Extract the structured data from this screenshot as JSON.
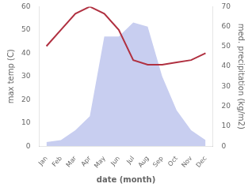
{
  "chart_data": {
    "type": "line",
    "xlabel": "date (month)",
    "ylabel": "max temp (C)",
    "y2label": "med. precipitation (kg/m2)",
    "categories": [
      "Jan",
      "Feb",
      "Mar",
      "Apr",
      "May",
      "Jun",
      "Jul",
      "Aug",
      "Sep",
      "Oct",
      "Nov",
      "Dec"
    ],
    "series": [
      {
        "type": "area",
        "color": "#c8cef0",
        "axis": "y2",
        "values": [
          2,
          3,
          8,
          15,
          55,
          55,
          62,
          60,
          35,
          18,
          8,
          3
        ]
      },
      {
        "type": "line",
        "color": "#b03040",
        "values": [
          43,
          50,
          57,
          60,
          57,
          50,
          37,
          35,
          35,
          36,
          37,
          40
        ]
      }
    ],
    "ylim": [
      0,
      60
    ],
    "yticks": [
      0,
      10,
      20,
      30,
      40,
      50,
      60
    ],
    "y2lim": [
      0,
      70
    ],
    "y2ticks": [
      0,
      10,
      20,
      30,
      40,
      50,
      60,
      70
    ],
    "grid": false
  }
}
